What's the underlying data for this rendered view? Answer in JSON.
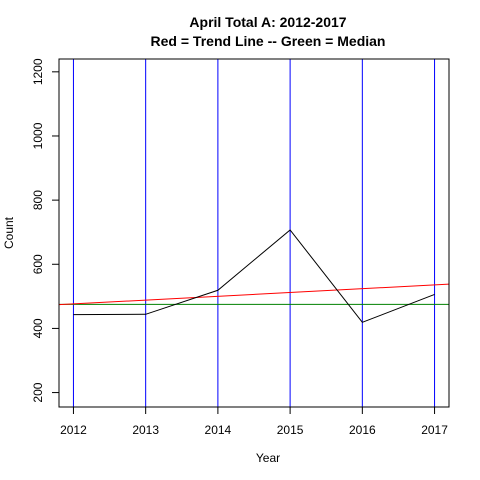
{
  "chart_data": {
    "type": "line",
    "title": "April Total A: 2012-2017",
    "subtitle": "Red = Trend Line -- Green = Median",
    "xlabel": "Year",
    "ylabel": "Count",
    "x": [
      2012,
      2013,
      2014,
      2015,
      2016,
      2017
    ],
    "y_ticks": [
      200,
      400,
      600,
      800,
      1000,
      1200
    ],
    "xlim": [
      2011.8,
      2017.2
    ],
    "ylim": [
      155,
      1240
    ],
    "grid": false,
    "legend": "none",
    "series": [
      {
        "values": [
          443,
          444,
          519,
          707,
          419,
          506
        ],
        "color": "#000000"
      }
    ],
    "trend_line": {
      "color": "#ff0000",
      "start": [
        2011.8,
        474
      ],
      "end": [
        2017.2,
        538
      ]
    },
    "median_line": {
      "color": "#008000",
      "value": 475
    },
    "year_markers": {
      "color": "#0000ff",
      "values": [
        2012,
        2013,
        2014,
        2015,
        2016,
        2017
      ]
    }
  }
}
